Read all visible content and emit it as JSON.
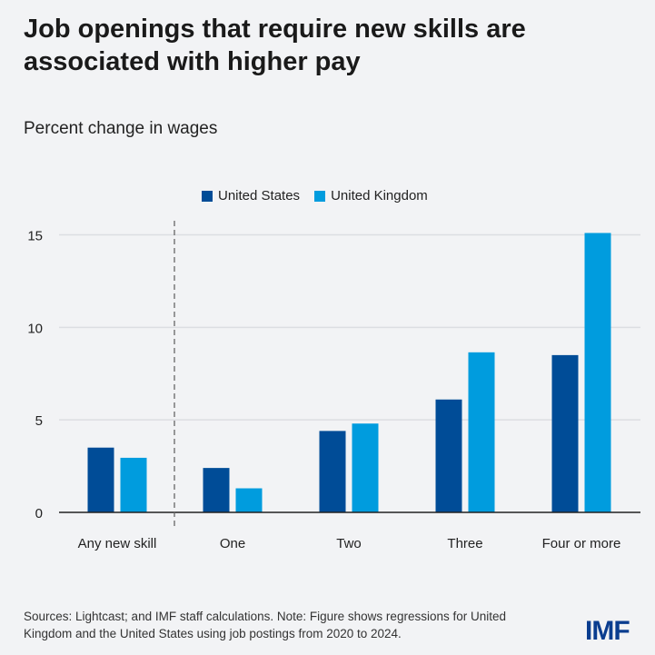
{
  "title": "Job openings that require new skills are associated with higher pay",
  "subtitle": "Percent change in wages",
  "note": "Sources: Lightcast; and IMF staff calculations. Note: Figure shows regressions for United Kingdom and the United States using job postings from 2020 to 2024.",
  "logo": "IMF",
  "chart_data": {
    "type": "bar",
    "title": "Job openings that require new skills are associated with higher pay",
    "ylabel": "Percent change in wages",
    "xlabel": "",
    "categories": [
      "Any new skill",
      "One",
      "Two",
      "Three",
      "Four or more"
    ],
    "series": [
      {
        "name": "United States",
        "color": "#004c97",
        "values": [
          3.5,
          2.4,
          4.4,
          6.1,
          8.5
        ]
      },
      {
        "name": "United Kingdom",
        "color": "#009cde",
        "values": [
          2.95,
          1.3,
          4.8,
          8.65,
          15.1
        ]
      }
    ],
    "ylim": [
      0,
      15
    ],
    "yticks": [
      "0",
      "5",
      "10",
      "15"
    ],
    "grid": true,
    "legend": "top",
    "separator_after_category": "Any new skill"
  }
}
